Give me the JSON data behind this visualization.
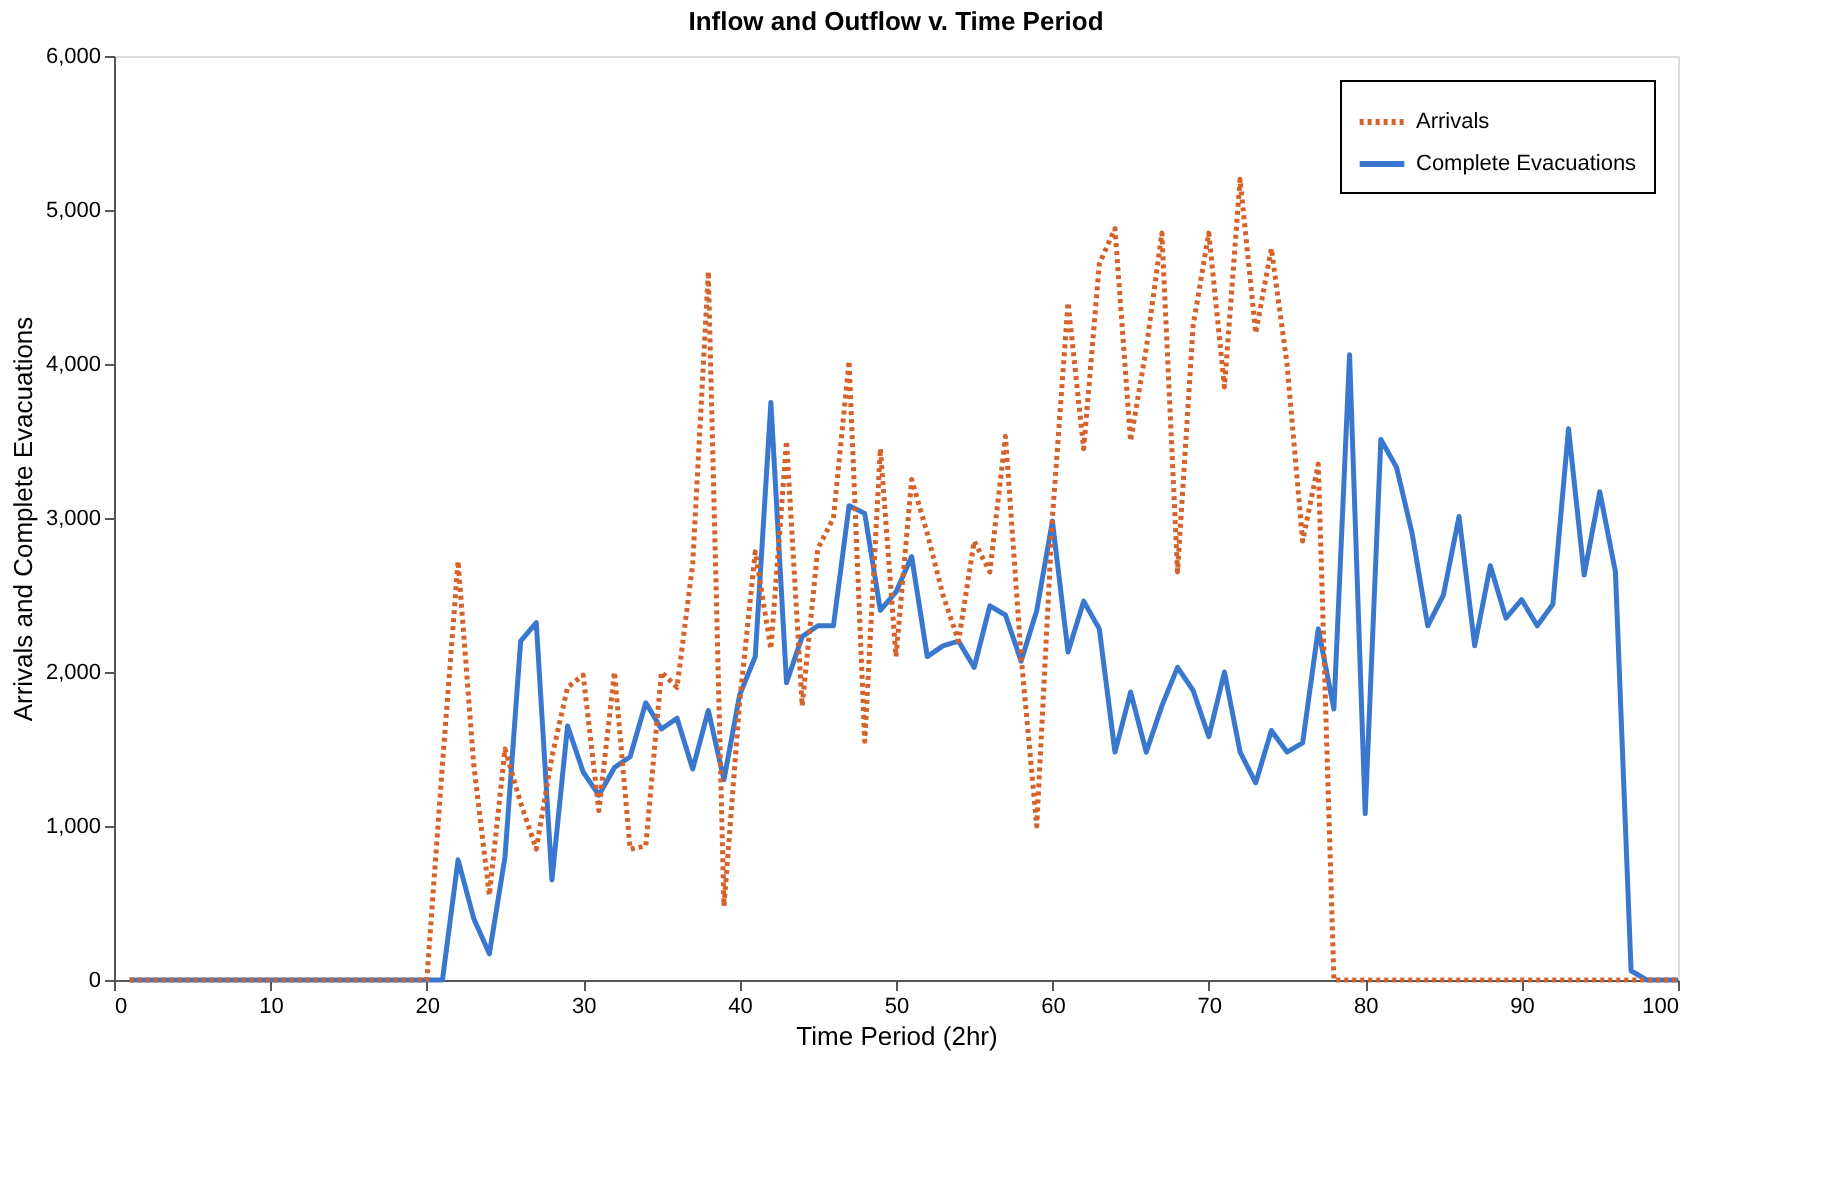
{
  "chart_data": {
    "type": "line",
    "title": "Inflow and Outflow v. Time Period",
    "xlabel": "Time Period (2hr)",
    "ylabel": "Arrivals and Complete Evacuations",
    "x": [
      1,
      2,
      3,
      4,
      5,
      6,
      7,
      8,
      9,
      10,
      11,
      12,
      13,
      14,
      15,
      16,
      17,
      18,
      19,
      20,
      21,
      22,
      23,
      24,
      25,
      26,
      27,
      28,
      29,
      30,
      31,
      32,
      33,
      34,
      35,
      36,
      37,
      38,
      39,
      40,
      41,
      42,
      43,
      44,
      45,
      46,
      47,
      48,
      49,
      50,
      51,
      52,
      53,
      54,
      55,
      56,
      57,
      58,
      59,
      60,
      61,
      62,
      63,
      64,
      65,
      66,
      67,
      68,
      69,
      70,
      71,
      72,
      73,
      74,
      75,
      76,
      77,
      78,
      79,
      80,
      81,
      82,
      83,
      84,
      85,
      86,
      87,
      88,
      89,
      90,
      91,
      92,
      93,
      94,
      95,
      96,
      97,
      98,
      99,
      100
    ],
    "series": [
      {
        "name": "Arrivals",
        "color": "#d4622a",
        "line_style": "dotted",
        "values": [
          0,
          0,
          0,
          0,
          0,
          0,
          0,
          0,
          0,
          0,
          0,
          0,
          0,
          0,
          0,
          0,
          0,
          0,
          0,
          0,
          1400,
          2720,
          1400,
          550,
          1500,
          1150,
          850,
          1450,
          1900,
          1980,
          1100,
          2000,
          850,
          870,
          2000,
          1900,
          2700,
          4600,
          480,
          1800,
          2780,
          2150,
          3500,
          1780,
          2800,
          3000,
          4020,
          1550,
          3450,
          2100,
          3250,
          2900,
          2500,
          2200,
          2850,
          2650,
          3530,
          2100,
          1000,
          3000,
          4400,
          3450,
          4650,
          4880,
          3500,
          4100,
          4850,
          2650,
          4250,
          4850,
          3850,
          5200,
          4200,
          4750,
          4000,
          2850,
          3350,
          0,
          0,
          0,
          0,
          0,
          0,
          0,
          0,
          0,
          0,
          0,
          0,
          0,
          0,
          0,
          0,
          0,
          0,
          0,
          0,
          0,
          0,
          0
        ]
      },
      {
        "name": "Complete Evacuations",
        "color": "#3a78d0",
        "line_style": "solid",
        "values": [
          0,
          0,
          0,
          0,
          0,
          0,
          0,
          0,
          0,
          0,
          0,
          0,
          0,
          0,
          0,
          0,
          0,
          0,
          0,
          0,
          0,
          780,
          400,
          170,
          800,
          2200,
          2320,
          650,
          1650,
          1350,
          1200,
          1380,
          1450,
          1800,
          1630,
          1700,
          1370,
          1750,
          1300,
          1850,
          2100,
          3750,
          1930,
          2230,
          2300,
          2300,
          3080,
          3030,
          2400,
          2520,
          2750,
          2100,
          2170,
          2200,
          2030,
          2430,
          2370,
          2070,
          2400,
          2980,
          2130,
          2460,
          2280,
          1480,
          1870,
          1480,
          1780,
          2030,
          1880,
          1580,
          2000,
          1480,
          1280,
          1620,
          1480,
          1540,
          2280,
          1760,
          4060,
          1080,
          3510,
          3330,
          2900,
          2300,
          2500,
          3010,
          2170,
          2690,
          2350,
          2470,
          2300,
          2440,
          3580,
          2630,
          3170,
          2650,
          60,
          0,
          0,
          0
        ]
      }
    ],
    "xlim": [
      0,
      100
    ],
    "xticks": [
      0,
      10,
      20,
      30,
      40,
      50,
      60,
      70,
      80,
      90,
      100
    ],
    "ylim": [
      0,
      6000
    ],
    "yticks": [
      0,
      {
        "value": 1000,
        "label": "1,000"
      },
      {
        "value": 2000,
        "label": "2,000"
      },
      {
        "value": 3000,
        "label": "3,000"
      },
      {
        "value": 4000,
        "label": "4,000"
      },
      {
        "value": 5000,
        "label": "5,000"
      },
      {
        "value": 6000,
        "label": "6,000"
      }
    ],
    "grid": false,
    "legend": "top right",
    "marker": "none"
  }
}
